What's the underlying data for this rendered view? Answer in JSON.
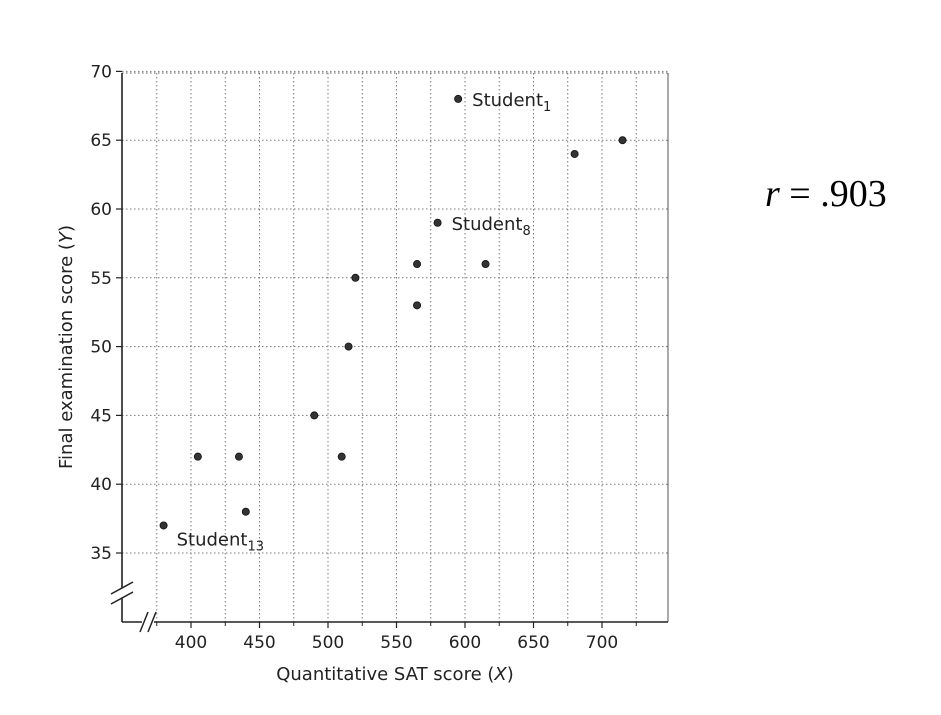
{
  "chart_data": {
    "type": "scatter",
    "xlabel": "Quantitative SAT score (X)",
    "ylabel": "Final examination score (Y)",
    "xlim": [
      370,
      750
    ],
    "ylim": [
      30,
      70
    ],
    "x_ticks": [
      400,
      450,
      500,
      550,
      600,
      650,
      700
    ],
    "y_ticks": [
      35,
      40,
      45,
      50,
      55,
      60,
      65,
      70
    ],
    "axis_breaks": [
      "x",
      "y"
    ],
    "grid": true,
    "points": [
      {
        "x": 380,
        "y": 37,
        "label": "Student",
        "sub": "13"
      },
      {
        "x": 405,
        "y": 42
      },
      {
        "x": 435,
        "y": 42
      },
      {
        "x": 440,
        "y": 38
      },
      {
        "x": 490,
        "y": 45
      },
      {
        "x": 510,
        "y": 42
      },
      {
        "x": 515,
        "y": 50
      },
      {
        "x": 520,
        "y": 55
      },
      {
        "x": 565,
        "y": 56
      },
      {
        "x": 565,
        "y": 53
      },
      {
        "x": 580,
        "y": 59,
        "label": "Student",
        "sub": "8"
      },
      {
        "x": 595,
        "y": 68,
        "label": "Student",
        "sub": "1"
      },
      {
        "x": 615,
        "y": 56
      },
      {
        "x": 680,
        "y": 64
      },
      {
        "x": 715,
        "y": 65
      }
    ]
  },
  "stat": {
    "r_symbol": "r",
    "r_text": " = .903"
  }
}
